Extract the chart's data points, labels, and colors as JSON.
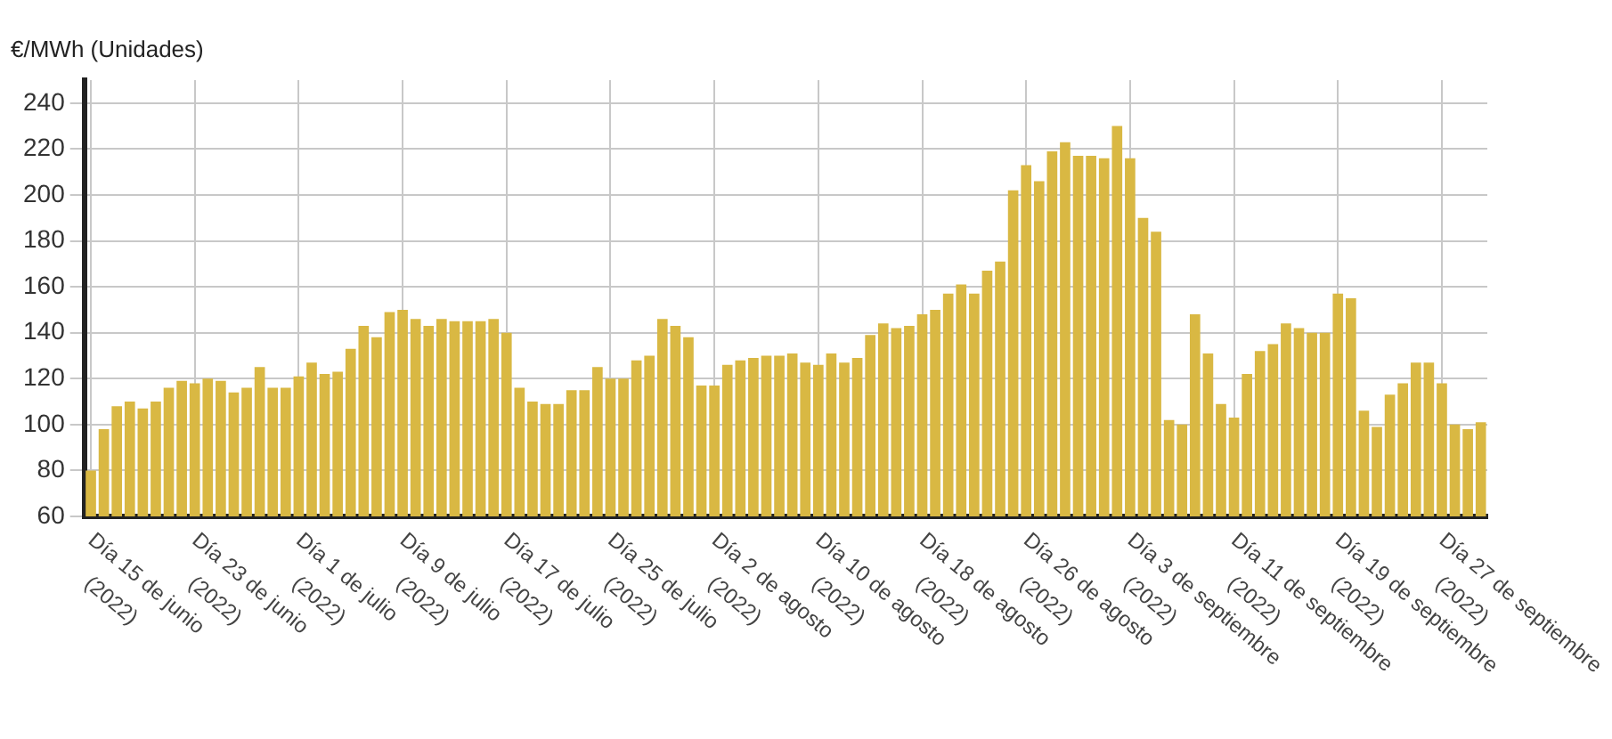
{
  "chart_data": {
    "type": "bar",
    "ylabel": "€/MWh (Unidades)",
    "categories": [
      "Día 15 de junio (2022)",
      null,
      null,
      null,
      null,
      null,
      null,
      null,
      "Día 23 de junio (2022)",
      null,
      null,
      null,
      null,
      null,
      null,
      null,
      "Día 1 de julio (2022)",
      null,
      null,
      null,
      null,
      null,
      null,
      null,
      "Día 9 de julio (2022)",
      null,
      null,
      null,
      null,
      null,
      null,
      null,
      "Día 17 de julio (2022)",
      null,
      null,
      null,
      null,
      null,
      null,
      null,
      "Día 25 de julio (2022)",
      null,
      null,
      null,
      null,
      null,
      null,
      null,
      "Día 2 de agosto (2022)",
      null,
      null,
      null,
      null,
      null,
      null,
      null,
      "Día 10 de agosto (2022)",
      null,
      null,
      null,
      null,
      null,
      null,
      null,
      "Día 18 de agosto (2022)",
      null,
      null,
      null,
      null,
      null,
      null,
      null,
      "Día 26 de agosto (2022)",
      null,
      null,
      null,
      null,
      null,
      null,
      null,
      "Día 3 de septiembre (2022)",
      null,
      null,
      null,
      null,
      null,
      null,
      null,
      "Día 11 de septiembre (2022)",
      null,
      null,
      null,
      null,
      null,
      null,
      null,
      "Día 19 de septiembre (2022)",
      null,
      null,
      null,
      null,
      null,
      null,
      null,
      "Día 27 de septiembre (2022)",
      null,
      null,
      null
    ],
    "values": [
      80,
      98,
      108,
      110,
      107,
      110,
      116,
      119,
      118,
      120,
      119,
      114,
      116,
      125,
      116,
      116,
      121,
      127,
      122,
      123,
      133,
      143,
      138,
      149,
      150,
      146,
      143,
      146,
      145,
      145,
      145,
      146,
      140,
      116,
      110,
      109,
      109,
      115,
      115,
      125,
      120,
      120,
      128,
      130,
      146,
      143,
      138,
      117,
      117,
      126,
      128,
      129,
      130,
      130,
      131,
      127,
      126,
      131,
      127,
      129,
      139,
      144,
      142,
      143,
      148,
      150,
      157,
      161,
      157,
      167,
      171,
      202,
      213,
      206,
      219,
      223,
      217,
      217,
      216,
      230,
      216,
      190,
      184,
      102,
      100,
      148,
      131,
      109,
      103,
      122,
      132,
      135,
      144,
      142,
      140,
      140,
      157,
      155,
      106,
      99,
      113,
      118,
      127,
      127,
      118,
      100,
      98,
      101
    ],
    "color": "#d9b843",
    "ylim": [
      60,
      250
    ],
    "yticks": [
      60,
      80,
      100,
      120,
      140,
      160,
      180,
      200,
      220,
      240
    ],
    "grid": true
  }
}
